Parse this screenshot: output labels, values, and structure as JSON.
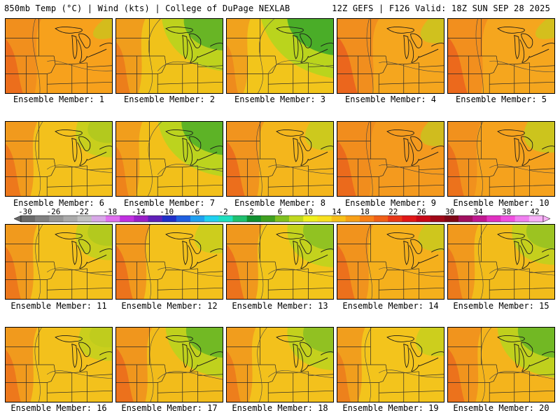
{
  "header": {
    "left": "850mb Temp (°C) | Wind (kts) | College of DuPage NEXLAB",
    "right": "12Z GEFS | F126 Valid: 18Z SUN SEP 28 2025"
  },
  "panel_label_prefix": "Ensemble Member: ",
  "members": [
    {
      "id": 1,
      "label": "1",
      "base": "#f7a11c",
      "cool": 0.1,
      "warm": 0.55
    },
    {
      "id": 2,
      "label": "2",
      "base": "#f0c21a",
      "cool": 0.8,
      "warm": 0.3
    },
    {
      "id": 3,
      "label": "3",
      "base": "#f2c51b",
      "cool": 0.95,
      "warm": 0.1
    },
    {
      "id": 4,
      "label": "4",
      "base": "#f5a61e",
      "cool": 0.2,
      "warm": 0.75
    },
    {
      "id": 5,
      "label": "5",
      "base": "#f5a61e",
      "cool": 0.1,
      "warm": 0.7
    },
    {
      "id": 6,
      "label": "6",
      "base": "#f3c11c",
      "cool": 0.45,
      "warm": 0.4
    },
    {
      "id": 7,
      "label": "7",
      "base": "#f2c01a",
      "cool": 0.85,
      "warm": 0.2
    },
    {
      "id": 8,
      "label": "8",
      "base": "#f4b61c",
      "cool": 0.3,
      "warm": 0.6
    },
    {
      "id": 9,
      "label": "9",
      "base": "#f49a1e",
      "cool": 0.2,
      "warm": 0.65
    },
    {
      "id": 10,
      "label": "10",
      "base": "#f5a21d",
      "cool": 0.35,
      "warm": 0.45
    },
    {
      "id": 11,
      "label": "11",
      "base": "#f3c11c",
      "cool": 0.45,
      "warm": 0.4
    },
    {
      "id": 12,
      "label": "12",
      "base": "#f3c11c",
      "cool": 0.3,
      "warm": 0.5
    },
    {
      "id": 13,
      "label": "13",
      "base": "#f2c51b",
      "cool": 0.6,
      "warm": 0.55
    },
    {
      "id": 14,
      "label": "14",
      "base": "#f5b01c",
      "cool": 0.25,
      "warm": 0.55
    },
    {
      "id": 15,
      "label": "15",
      "base": "#f2bc1b",
      "cool": 0.55,
      "warm": 0.35
    },
    {
      "id": 16,
      "label": "16",
      "base": "#f3c11c",
      "cool": 0.4,
      "warm": 0.4
    },
    {
      "id": 17,
      "label": "17",
      "base": "#f2bc1b",
      "cool": 0.75,
      "warm": 0.55
    },
    {
      "id": 18,
      "label": "18",
      "base": "#f3c11c",
      "cool": 0.6,
      "warm": 0.3
    },
    {
      "id": 19,
      "label": "19",
      "base": "#f3c41c",
      "cool": 0.3,
      "warm": 0.25
    },
    {
      "id": 20,
      "label": "20",
      "base": "#f4b41c",
      "cool": 0.75,
      "warm": 0.5
    }
  ],
  "colorbar": {
    "labels": [
      "-30",
      "-26",
      "-22",
      "-18",
      "-14",
      "-10",
      "-6",
      "-2",
      "2",
      "6",
      "10",
      "14",
      "18",
      "22",
      "26",
      "30",
      "34",
      "38",
      "42"
    ],
    "colors": [
      "#6a6a6a",
      "#808080",
      "#969696",
      "#aaaaaa",
      "#c0c0c0",
      "#d8a8e8",
      "#e070f0",
      "#c030e0",
      "#9a20c8",
      "#6020b8",
      "#2030c8",
      "#2060e0",
      "#20a0f0",
      "#20d0f0",
      "#20e0c0",
      "#20c070",
      "#109030",
      "#40a020",
      "#80c020",
      "#c0d820",
      "#f0f020",
      "#f8e020",
      "#f8c018",
      "#f8a018",
      "#f88018",
      "#f06018",
      "#e83818",
      "#e01818",
      "#c80818",
      "#a00818",
      "#800818",
      "#a01060",
      "#c01890",
      "#e030c0",
      "#f050e0",
      "#f080f0",
      "#f8b0f8"
    ]
  }
}
